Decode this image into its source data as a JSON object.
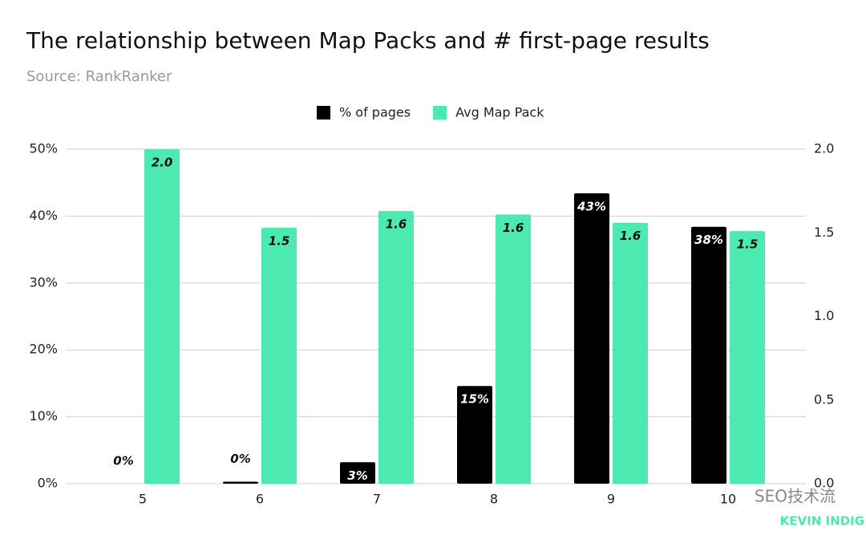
{
  "chart_data": {
    "type": "bar",
    "title": "The relationship between Map Packs and # first-page results",
    "subtitle": "Source: RankRanker",
    "categories": [
      "5",
      "6",
      "7",
      "8",
      "9",
      "10"
    ],
    "series": [
      {
        "name": "% of pages",
        "color": "#000000",
        "values": [
          0,
          0.3,
          3.2,
          14.6,
          43.4,
          38.4
        ],
        "value_labels": [
          "0%",
          "0%",
          "3%",
          "15%",
          "43%",
          "38%"
        ]
      },
      {
        "name": "Avg Map Pack",
        "color": "#4ceab0",
        "axis": "y2",
        "values": [
          2.0,
          1.53,
          1.63,
          1.61,
          1.56,
          1.51
        ],
        "value_labels": [
          "2.0",
          "1.5",
          "1.6",
          "1.6",
          "1.6",
          "1.5"
        ]
      }
    ],
    "ylim": [
      0,
      50
    ],
    "yticks": [
      {
        "value": 0,
        "label": "0%"
      },
      {
        "value": 10,
        "label": "10%"
      },
      {
        "value": 20,
        "label": "20%"
      },
      {
        "value": 30,
        "label": "30%"
      },
      {
        "value": 40,
        "label": "40%"
      },
      {
        "value": 50,
        "label": "50%"
      }
    ],
    "y2lim": [
      0,
      2
    ],
    "y2ticks": [
      {
        "value": 0,
        "label": "0.0"
      },
      {
        "value": 0.5,
        "label": "0.5"
      },
      {
        "value": 1,
        "label": "1.0"
      },
      {
        "value": 1.5,
        "label": "1.5"
      },
      {
        "value": 2,
        "label": "2.0"
      }
    ],
    "grid": true,
    "legend": "top"
  },
  "watermark": {
    "channel": "SEO技术流",
    "brand": "KEVIN INDIG"
  }
}
